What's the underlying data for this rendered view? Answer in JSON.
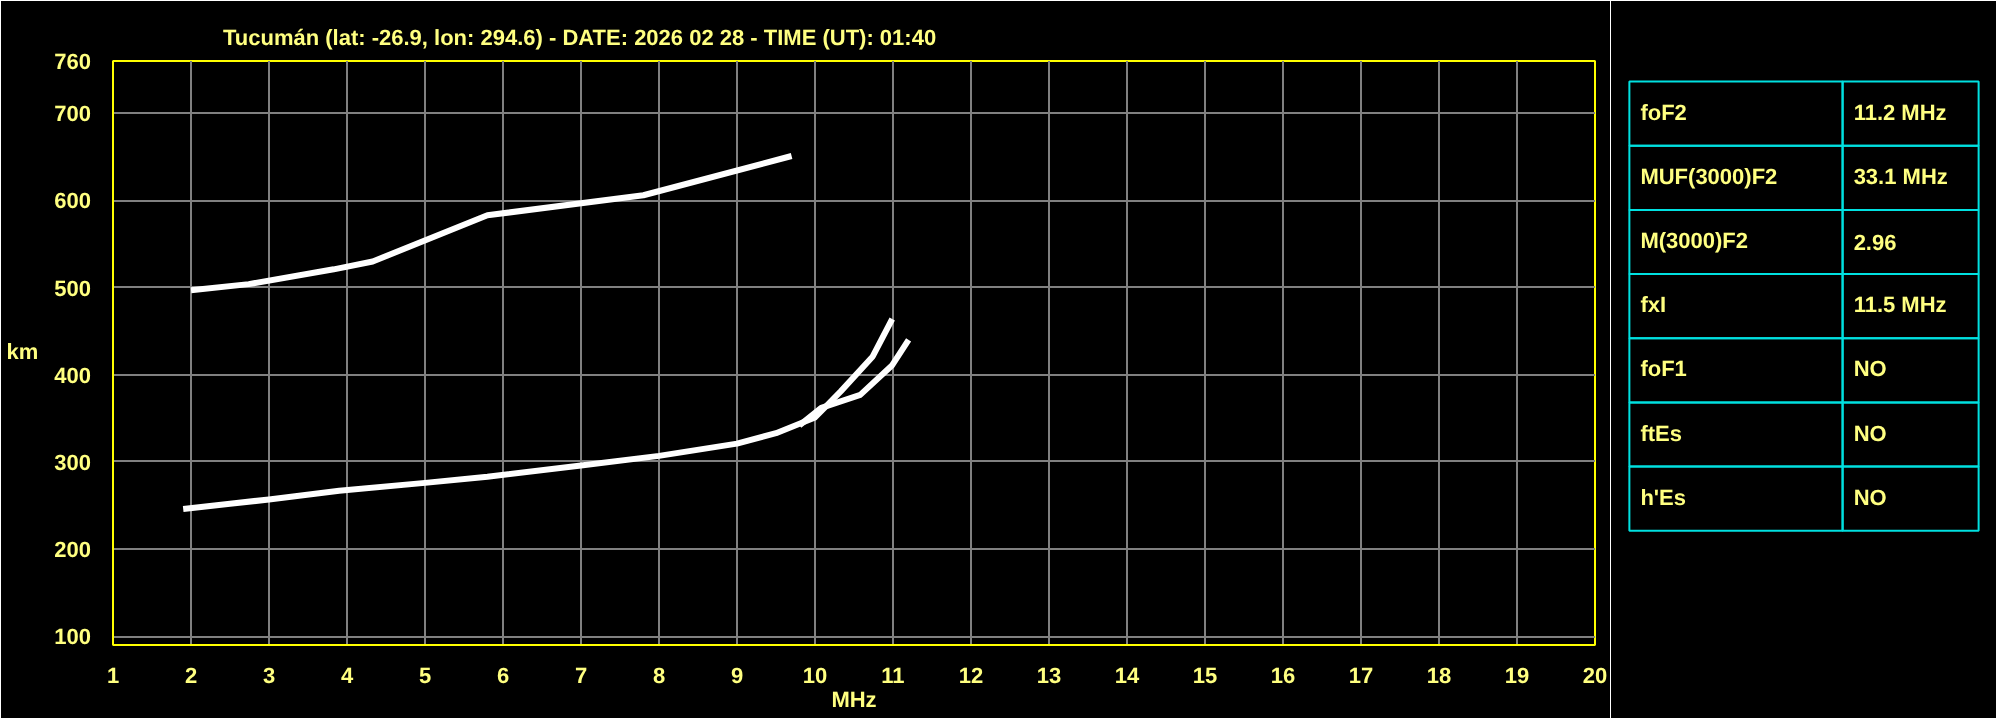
{
  "chart_data": [
    {
      "type": "line",
      "title": "Tucumán (lat: -26.9, lon: 294.6) - DATE: 2026 02 28 - TIME (UT): 01:40",
      "xlabel": "MHz",
      "ylabel": "km",
      "xlim": [
        1,
        20
      ],
      "ylim": [
        90,
        760
      ],
      "xticks": [
        1,
        2,
        3,
        4,
        5,
        6,
        7,
        8,
        9,
        10,
        11,
        12,
        13,
        14,
        15,
        16,
        17,
        18,
        19,
        20
      ],
      "yticks": [
        100,
        200,
        300,
        400,
        500,
        600,
        700,
        760
      ],
      "grid": true,
      "marker": "none",
      "line_style": "solid",
      "series": [
        {
          "color": "#ffffff",
          "x": [
            1.9,
            2.5,
            3.0,
            3.9,
            5.0,
            5.8,
            7.0,
            8.0,
            9.0,
            9.5,
            10.0,
            10.33,
            10.74,
            10.99
          ],
          "values": [
            246,
            252,
            257,
            267,
            276,
            283,
            296,
            307,
            321,
            333,
            351,
            381,
            421,
            464
          ]
        },
        {
          "color": "#ffffff",
          "x": [
            9.8,
            10.08,
            10.58,
            10.99,
            11.2
          ],
          "values": [
            342,
            362,
            377,
            411,
            440
          ]
        },
        {
          "color": "#ffffff",
          "x": [
            2.0,
            2.74,
            3.83,
            4.33,
            5.8,
            7.8,
            9.7
          ],
          "values": [
            497,
            504,
            521,
            530,
            583,
            606,
            651
          ]
        }
      ]
    },
    {
      "type": "other",
      "annotations": [
        "foF2",
        "11.2 MHz",
        "MUF(3000)F2",
        "33.1 MHz",
        "M(3000)F2",
        "2.96",
        "fxI",
        "11.5 MHz",
        "foF1",
        "NO",
        "ftEs",
        "NO",
        "h'Es",
        "NO"
      ]
    }
  ]
}
